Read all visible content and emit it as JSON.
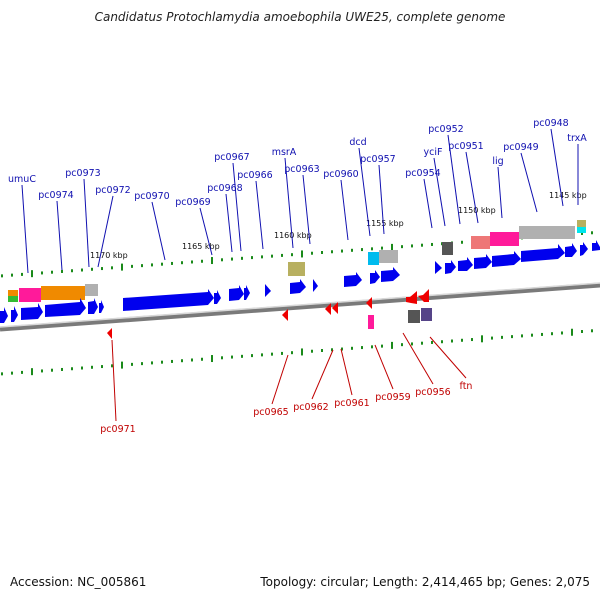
{
  "title": "Candidatus Protochlamydia amoebophila UWE25, complete genome",
  "footer": {
    "accession": "Accession: NC_005861",
    "summary": "Topology: circular; Length: 2,414,465 bp; Genes: 2,075"
  },
  "colors": {
    "forward_label": "#1010b0",
    "reverse_label": "#c00000",
    "forward_gene": "#0000ee",
    "reverse_gene": "#ee0000",
    "tick": "#1a8a1a",
    "backbone": "#808080"
  },
  "scale_labels": [
    "1170 kbp",
    "1165 kbp",
    "1160 kbp",
    "1155 kbp",
    "1150 kbp",
    "1145 kbp"
  ],
  "forward_genes": [
    "umuC",
    "pc0974",
    "pc0973",
    "pc0972",
    "pc0970",
    "pc0969",
    "pc0968",
    "pc0967",
    "pc0966",
    "msrA",
    "pc0963",
    "pc0960",
    "dcd",
    "pc0957",
    "pc0954",
    "yciF",
    "pc0952",
    "pc0951",
    "lig",
    "pc0949",
    "pc0948",
    "trxA"
  ],
  "reverse_genes": [
    "pc0971",
    "pc0965",
    "pc0962",
    "pc0961",
    "pc0959",
    "pc0956",
    "ftn"
  ]
}
